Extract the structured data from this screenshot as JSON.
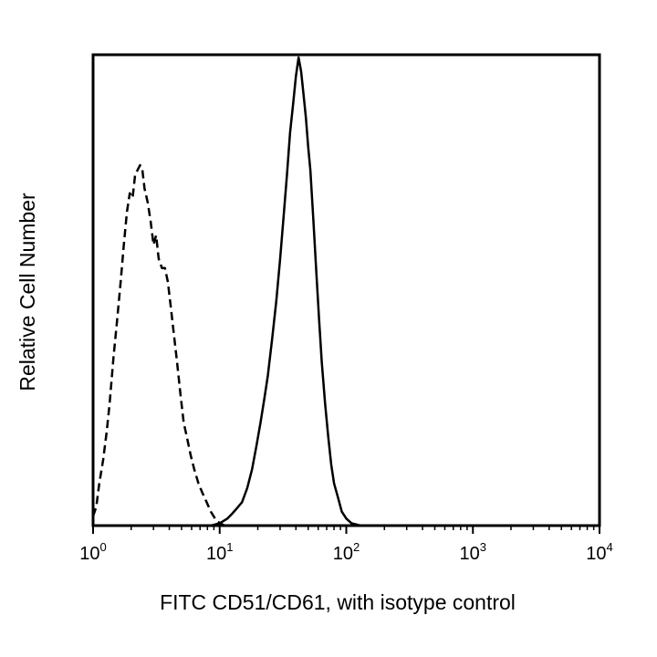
{
  "chart_data": {
    "type": "line",
    "title": "",
    "xlabel": "FITC CD51/CD61, with isotype control",
    "ylabel": "Relative Cell Number",
    "x_scale": "log",
    "xlim": [
      1,
      10000
    ],
    "ylim": [
      0,
      100
    ],
    "grid": false,
    "legend": "none",
    "x_ticks": [
      {
        "value": 1,
        "base": "10",
        "exp": "0"
      },
      {
        "value": 10,
        "base": "10",
        "exp": "1"
      },
      {
        "value": 100,
        "base": "10",
        "exp": "2"
      },
      {
        "value": 1000,
        "base": "10",
        "exp": "3"
      },
      {
        "value": 10000,
        "base": "10",
        "exp": "4"
      }
    ],
    "series": [
      {
        "line_style": "dashed",
        "color": "#000000",
        "x": [
          1.0,
          1.06,
          1.12,
          1.2,
          1.28,
          1.35,
          1.45,
          1.55,
          1.65,
          1.75,
          1.85,
          1.95,
          2.05,
          2.15,
          2.25,
          2.35,
          2.45,
          2.55,
          2.7,
          2.85,
          3.0,
          3.15,
          3.3,
          3.5,
          3.7,
          3.9,
          4.1,
          4.3,
          4.6,
          4.9,
          5.2,
          5.5,
          5.9,
          6.3,
          6.8,
          7.3,
          7.9,
          8.5,
          9.2,
          10.0,
          11.0
        ],
        "y": [
          2,
          4,
          9,
          14,
          20,
          26,
          36,
          44,
          52,
          60,
          67,
          71,
          70,
          75,
          76,
          77,
          76,
          72,
          69,
          65,
          60,
          62,
          57,
          55,
          55,
          52,
          47,
          42,
          35,
          28,
          22,
          19,
          15,
          12,
          9,
          7,
          5,
          3,
          1.5,
          0.5,
          0
        ]
      },
      {
        "line_style": "solid",
        "color": "#000000",
        "x": [
          8.5,
          10.0,
          11.5,
          12.5,
          13.5,
          15.0,
          16.5,
          18.0,
          19.5,
          21.0,
          22.5,
          24.0,
          26.0,
          28.0,
          30.0,
          32.0,
          34.0,
          36.0,
          38.0,
          40.0,
          42.0,
          44.0,
          46.0,
          48.0,
          50.0,
          52.0,
          55.0,
          58.0,
          61.0,
          64.0,
          68.0,
          72.0,
          76.0,
          80.0,
          86.0,
          92.0,
          100.0,
          110.0,
          130.0
        ],
        "y": [
          0,
          0.5,
          1.5,
          2.5,
          3.5,
          5,
          8,
          12,
          17,
          22,
          27,
          32,
          40,
          48,
          57,
          66,
          75,
          84,
          90,
          96,
          100,
          97,
          92,
          87,
          81,
          76,
          65,
          54,
          44,
          35,
          26,
          19,
          13,
          9,
          6,
          3,
          1.5,
          0.5,
          0
        ]
      }
    ]
  }
}
